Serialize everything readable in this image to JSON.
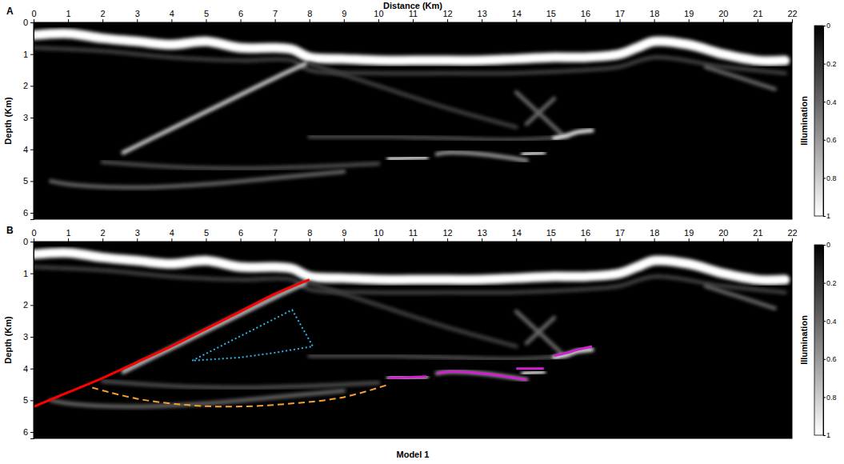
{
  "chart_data": [
    {
      "type": "image",
      "panel_label": "A",
      "x_label": "Distance (Km)",
      "y_label": "Depth (Km)",
      "xlim": [
        0,
        22
      ],
      "xticks": [
        0,
        1,
        2,
        3,
        4,
        5,
        6,
        7,
        8,
        9,
        10,
        11,
        12,
        13,
        14,
        15,
        16,
        17,
        18,
        19,
        20,
        21,
        22
      ],
      "ylim": [
        0,
        6.2
      ],
      "yticks": [
        0,
        1,
        2,
        3,
        4,
        5,
        6
      ],
      "background_illumination": 0,
      "colorbar": {
        "label": "Illumination",
        "range": [
          0,
          1
        ],
        "ticks": [
          0,
          0.2,
          0.4,
          0.6,
          0.8,
          1
        ],
        "colors": [
          "#000000",
          "#ffffff"
        ]
      },
      "features": [
        {
          "x": [
            0,
            1,
            2,
            3,
            4,
            5,
            6,
            7,
            7.5,
            8,
            9,
            10,
            11,
            12,
            13,
            14,
            15,
            16,
            17,
            17.5,
            18,
            19,
            20,
            21,
            21.8
          ],
          "y": [
            0.4,
            0.35,
            0.5,
            0.6,
            0.7,
            0.6,
            0.8,
            0.8,
            0.85,
            1.1,
            1.15,
            1.2,
            1.2,
            1.2,
            1.2,
            1.15,
            1.1,
            1.1,
            1.0,
            0.8,
            0.6,
            0.7,
            1.0,
            1.2,
            1.2
          ],
          "illumination": 1
        },
        {
          "x": [
            0,
            2,
            4,
            6,
            7.5,
            8,
            10,
            12,
            14,
            16,
            17,
            18,
            20,
            21.8
          ],
          "y": [
            0.8,
            0.9,
            1.1,
            1.2,
            1.2,
            1.5,
            1.6,
            1.6,
            1.6,
            1.5,
            1.4,
            1.1,
            1.4,
            1.6
          ],
          "illumination": 0.25
        },
        {
          "x": [
            2.6,
            4,
            5.5,
            7,
            7.9
          ],
          "y": [
            4.1,
            3.35,
            2.55,
            1.75,
            1.3
          ],
          "illumination": 0.8
        },
        {
          "x": [
            0.5,
            1,
            3,
            5,
            7,
            9
          ],
          "y": [
            5.0,
            5.1,
            5.2,
            5.1,
            4.9,
            4.7
          ],
          "illumination": 0.4
        },
        {
          "x": [
            2,
            4,
            6,
            8,
            10
          ],
          "y": [
            4.4,
            4.55,
            4.6,
            4.55,
            4.45
          ],
          "illumination": 0.3
        },
        {
          "x": [
            8,
            10,
            12,
            14,
            15.5
          ],
          "y": [
            3.6,
            3.6,
            3.65,
            3.7,
            3.6
          ],
          "illumination": 0.3
        },
        {
          "x": [
            8,
            10,
            12,
            14
          ],
          "y": [
            1.3,
            2.0,
            2.7,
            3.3
          ],
          "illumination": 0.25
        },
        {
          "x": [
            14,
            14.6,
            15.3
          ],
          "y": [
            2.2,
            2.8,
            3.5
          ],
          "illumination": 0.4
        },
        {
          "x": [
            14.3,
            14.7,
            15.1
          ],
          "y": [
            3.2,
            2.8,
            2.4
          ],
          "illumination": 0.4
        },
        {
          "x": [
            19.5,
            20.5,
            21.5
          ],
          "y": [
            1.4,
            1.75,
            2.1
          ],
          "illumination": 0.4
        },
        {
          "x": [
            10.3,
            10.8,
            11.4
          ],
          "y": [
            4.3,
            4.28,
            4.25
          ],
          "illumination": 0.9
        },
        {
          "x": [
            11.7,
            12,
            13,
            14.3
          ],
          "y": [
            4.15,
            4.1,
            4.15,
            4.35
          ],
          "illumination": 0.6
        },
        {
          "x": [
            14.2,
            14.5,
            14.8
          ],
          "y": [
            4.15,
            4.12,
            4.1
          ],
          "illumination": 0.9
        },
        {
          "x": [
            15.1,
            15.5,
            15.8,
            16.2
          ],
          "y": [
            3.65,
            3.55,
            3.45,
            3.4
          ],
          "illumination": 0.95
        }
      ]
    },
    {
      "type": "image",
      "panel_label": "B",
      "y_label": "Depth (Km)",
      "caption": "Model 1",
      "xlim": [
        0,
        22
      ],
      "xticks": [
        0,
        1,
        2,
        3,
        4,
        5,
        6,
        7,
        8,
        9,
        10,
        11,
        12,
        13,
        14,
        15,
        16,
        17,
        18,
        19,
        20,
        21,
        22
      ],
      "ylim": [
        0,
        6.2
      ],
      "yticks": [
        0,
        1,
        2,
        3,
        4,
        5,
        6
      ],
      "background_illumination": 0,
      "colorbar": {
        "label": "Illumination",
        "range": [
          0,
          1
        ],
        "ticks": [
          0,
          0.2,
          0.4,
          0.6,
          0.8,
          1
        ],
        "colors": [
          "#000000",
          "#ffffff"
        ]
      },
      "features": [
        {
          "x": [
            0,
            1,
            2,
            3,
            4,
            5,
            6,
            7,
            7.5,
            8,
            9,
            10,
            11,
            12,
            13,
            14,
            15,
            16,
            17,
            17.5,
            18,
            19,
            20,
            21,
            21.8
          ],
          "y": [
            0.4,
            0.35,
            0.5,
            0.6,
            0.7,
            0.6,
            0.8,
            0.8,
            0.85,
            1.1,
            1.15,
            1.2,
            1.2,
            1.2,
            1.2,
            1.15,
            1.1,
            1.1,
            1.0,
            0.8,
            0.6,
            0.7,
            1.0,
            1.2,
            1.2
          ],
          "illumination": 1
        },
        {
          "x": [
            0,
            2,
            4,
            6,
            7.5,
            8,
            10,
            12,
            14,
            16,
            17,
            18,
            20,
            21.8
          ],
          "y": [
            0.8,
            0.9,
            1.1,
            1.2,
            1.2,
            1.5,
            1.6,
            1.6,
            1.6,
            1.5,
            1.4,
            1.1,
            1.4,
            1.6
          ],
          "illumination": 0.25
        },
        {
          "x": [
            2.6,
            4,
            5.5,
            7,
            7.9
          ],
          "y": [
            4.1,
            3.35,
            2.55,
            1.75,
            1.3
          ],
          "illumination": 0.8
        },
        {
          "x": [
            0.5,
            1,
            3,
            5,
            7,
            9
          ],
          "y": [
            5.0,
            5.1,
            5.2,
            5.1,
            4.9,
            4.7
          ],
          "illumination": 0.4
        },
        {
          "x": [
            2,
            4,
            6,
            8,
            10
          ],
          "y": [
            4.4,
            4.55,
            4.6,
            4.55,
            4.45
          ],
          "illumination": 0.3
        },
        {
          "x": [
            8,
            10,
            12,
            14,
            15.5
          ],
          "y": [
            3.6,
            3.6,
            3.65,
            3.7,
            3.6
          ],
          "illumination": 0.3
        },
        {
          "x": [
            8,
            10,
            12,
            14
          ],
          "y": [
            1.3,
            2.0,
            2.7,
            3.3
          ],
          "illumination": 0.25
        },
        {
          "x": [
            14,
            14.6,
            15.3
          ],
          "y": [
            2.2,
            2.8,
            3.5
          ],
          "illumination": 0.4
        },
        {
          "x": [
            14.3,
            14.7,
            15.1
          ],
          "y": [
            3.2,
            2.8,
            2.4
          ],
          "illumination": 0.4
        },
        {
          "x": [
            19.5,
            20.5,
            21.5
          ],
          "y": [
            1.4,
            1.75,
            2.1
          ],
          "illumination": 0.4
        },
        {
          "x": [
            10.3,
            10.8,
            11.4
          ],
          "y": [
            4.3,
            4.28,
            4.25
          ],
          "illumination": 0.9
        },
        {
          "x": [
            11.7,
            12,
            13,
            14.3
          ],
          "y": [
            4.15,
            4.1,
            4.15,
            4.35
          ],
          "illumination": 0.6
        },
        {
          "x": [
            14.2,
            14.5,
            14.8
          ],
          "y": [
            4.15,
            4.12,
            4.1
          ],
          "illumination": 0.9
        },
        {
          "x": [
            15.1,
            15.5,
            15.8,
            16.2
          ],
          "y": [
            3.65,
            3.55,
            3.45,
            3.4
          ],
          "illumination": 0.95
        }
      ],
      "annotations": [
        {
          "x": [
            0,
            1,
            2,
            3,
            4,
            5,
            6,
            7,
            8
          ],
          "values": [
            5.2,
            4.75,
            4.3,
            3.8,
            3.3,
            2.75,
            2.2,
            1.65,
            1.2
          ],
          "color": "#ff0000",
          "line_style": "solid"
        },
        {
          "x": [
            4.6,
            7.5,
            8.1,
            7.0,
            6.0,
            4.6
          ],
          "values": [
            3.75,
            2.15,
            3.3,
            3.5,
            3.65,
            3.75
          ],
          "color": "#29b6e8",
          "line_style": "dotted"
        },
        {
          "x": [
            1.7,
            3,
            4.5,
            5.8,
            7.5,
            9,
            10.3
          ],
          "values": [
            4.6,
            4.95,
            5.15,
            5.2,
            5.1,
            4.9,
            4.5
          ],
          "color": "#f5a030",
          "line_style": "dashed"
        },
        {
          "x": [
            10.3,
            10.8,
            11.4
          ],
          "values": [
            4.3,
            4.28,
            4.25
          ],
          "color": "#d020d0",
          "line_style": "solid"
        },
        {
          "x": [
            11.7,
            12,
            13,
            14.3
          ],
          "values": [
            4.15,
            4.1,
            4.15,
            4.35
          ],
          "color": "#d020d0",
          "line_style": "solid"
        },
        {
          "x": [
            14.0,
            14.8
          ],
          "values": [
            4.0,
            4.0
          ],
          "color": "#d020d0",
          "line_style": "solid"
        },
        {
          "x": [
            15.1,
            15.5,
            15.8,
            16.2
          ],
          "values": [
            3.6,
            3.5,
            3.4,
            3.3
          ],
          "color": "#d020d0",
          "line_style": "solid"
        }
      ]
    }
  ]
}
